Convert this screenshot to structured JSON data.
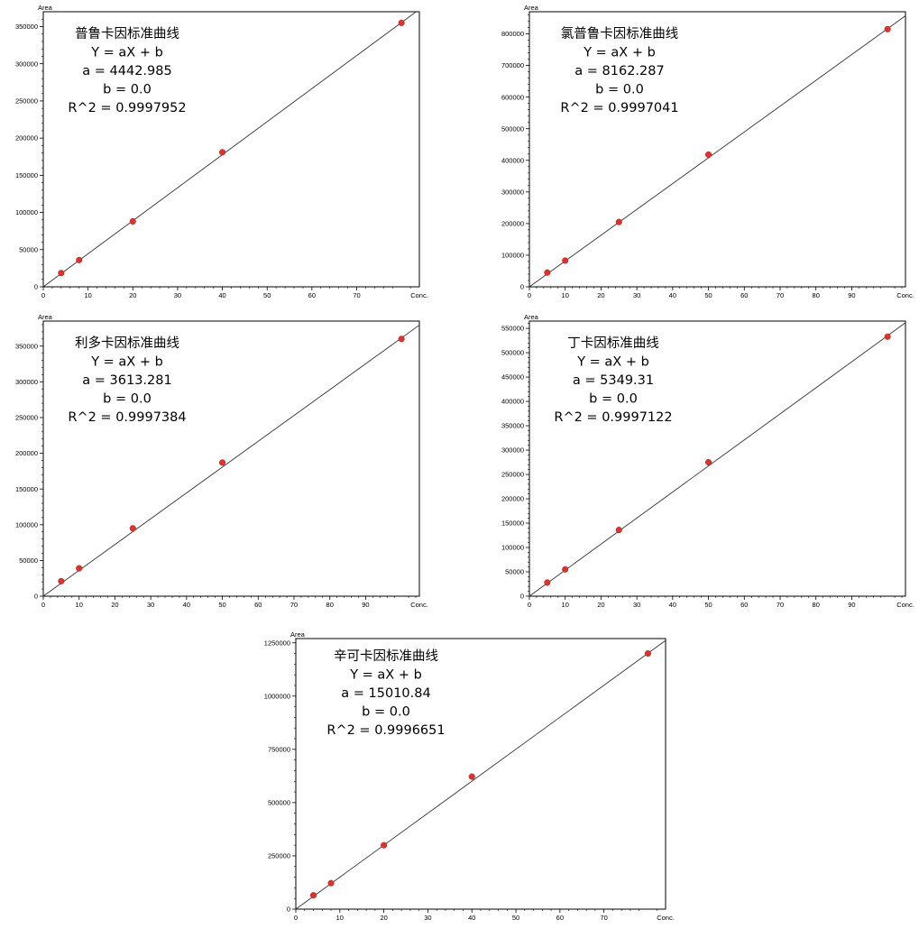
{
  "chart_data": [
    {
      "type": "scatter",
      "title": "普鲁卡因标准曲线",
      "equation": "Y = aX + b",
      "a_text": "a = 4442.985",
      "b_text": "b = 0.0",
      "r2_text": "R^2 = 0.9997952",
      "slope": 4442.985,
      "intercept": 0.0,
      "xlabel": "Conc.",
      "ylabel": "Area",
      "xlim": [
        0,
        84
      ],
      "ylim": [
        0,
        370000
      ],
      "x_ticks": [
        0,
        10,
        20,
        30,
        40,
        50,
        60,
        70
      ],
      "y_ticks": [
        0,
        50000,
        100000,
        150000,
        200000,
        250000,
        300000,
        350000
      ],
      "x": [
        4,
        8,
        20,
        40,
        80
      ],
      "y": [
        18500,
        36000,
        88000,
        181000,
        355000
      ],
      "point_color": "#e0322b"
    },
    {
      "type": "scatter",
      "title": "氯普鲁卡因标准曲线",
      "equation": "Y = aX + b",
      "a_text": "a = 8162.287",
      "b_text": "b = 0.0",
      "r2_text": "R^2 = 0.9997041",
      "slope": 8162.287,
      "intercept": 0.0,
      "xlabel": "Conc.",
      "ylabel": "Area",
      "xlim": [
        0,
        105
      ],
      "ylim": [
        0,
        870000
      ],
      "x_ticks": [
        0,
        10,
        20,
        30,
        40,
        50,
        60,
        70,
        80,
        90
      ],
      "y_ticks": [
        0,
        100000,
        200000,
        300000,
        400000,
        500000,
        600000,
        700000,
        800000
      ],
      "x": [
        5,
        10,
        25,
        50,
        100
      ],
      "y": [
        45000,
        83000,
        205000,
        418000,
        815000
      ],
      "point_color": "#e0322b"
    },
    {
      "type": "scatter",
      "title": "利多卡因标准曲线",
      "equation": "Y = aX + b",
      "a_text": "a = 3613.281",
      "b_text": "b = 0.0",
      "r2_text": "R^2 = 0.9997384",
      "slope": 3613.281,
      "intercept": 0.0,
      "xlabel": "Conc.",
      "ylabel": "Area",
      "xlim": [
        0,
        105
      ],
      "ylim": [
        0,
        385000
      ],
      "x_ticks": [
        0,
        10,
        20,
        30,
        40,
        50,
        60,
        70,
        80,
        90
      ],
      "y_ticks": [
        0,
        50000,
        100000,
        150000,
        200000,
        250000,
        300000,
        350000
      ],
      "x": [
        5,
        10,
        25,
        50,
        100
      ],
      "y": [
        21000,
        39000,
        95000,
        187000,
        360000
      ],
      "point_color": "#e0322b"
    },
    {
      "type": "scatter",
      "title": "丁卡因标准曲线",
      "equation": "Y = aX + b",
      "a_text": "a = 5349.31",
      "b_text": "b = 0.0",
      "r2_text": "R^2 = 0.9997122",
      "slope": 5349.31,
      "intercept": 0.0,
      "xlabel": "Conc.",
      "ylabel": "Area",
      "xlim": [
        0,
        105
      ],
      "ylim": [
        0,
        565000
      ],
      "x_ticks": [
        0,
        10,
        20,
        30,
        40,
        50,
        60,
        70,
        80,
        90
      ],
      "y_ticks": [
        0,
        50000,
        100000,
        150000,
        200000,
        250000,
        300000,
        350000,
        400000,
        450000,
        500000,
        550000
      ],
      "x": [
        5,
        10,
        25,
        50,
        100
      ],
      "y": [
        28000,
        55000,
        136000,
        275000,
        533000
      ],
      "point_color": "#e0322b"
    },
    {
      "type": "scatter",
      "title": "辛可卡因标准曲线",
      "equation": "Y = aX + b",
      "a_text": "a = 15010.84",
      "b_text": "b = 0.0",
      "r2_text": "R^2 = 0.9996651",
      "slope": 15010.84,
      "intercept": 0.0,
      "xlabel": "Conc.",
      "ylabel": "Area",
      "xlim": [
        0,
        84
      ],
      "ylim": [
        0,
        1270000
      ],
      "x_ticks": [
        0,
        10,
        20,
        30,
        40,
        50,
        60,
        70
      ],
      "y_ticks": [
        0,
        250000,
        500000,
        750000,
        1000000,
        1250000
      ],
      "x": [
        4,
        8,
        20,
        40,
        80
      ],
      "y": [
        65000,
        122000,
        300000,
        622000,
        1200000
      ],
      "point_color": "#e0322b"
    }
  ]
}
